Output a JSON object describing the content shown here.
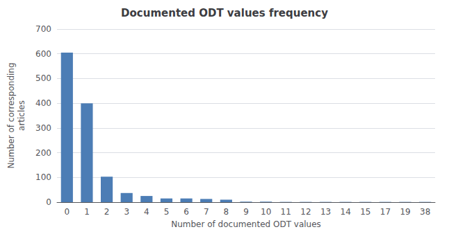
{
  "chart_data": {
    "type": "bar",
    "title": "Documented ODT values frequency",
    "xlabel": "Number of documented ODT values",
    "ylabel": "Number of corresponding\narticles",
    "categories": [
      "0",
      "1",
      "2",
      "3",
      "4",
      "5",
      "6",
      "7",
      "8",
      "9",
      "10",
      "11",
      "12",
      "13",
      "14",
      "15",
      "17",
      "19",
      "38"
    ],
    "values": [
      605,
      400,
      103,
      37,
      25,
      15,
      15,
      13,
      10,
      2,
      2,
      1,
      1,
      1,
      1,
      1,
      1,
      1,
      1
    ],
    "color": "#4C7DB5",
    "ylim": [
      0,
      700
    ],
    "yticks": [
      0,
      100,
      200,
      300,
      400,
      500,
      600,
      700
    ],
    "grid": true
  }
}
